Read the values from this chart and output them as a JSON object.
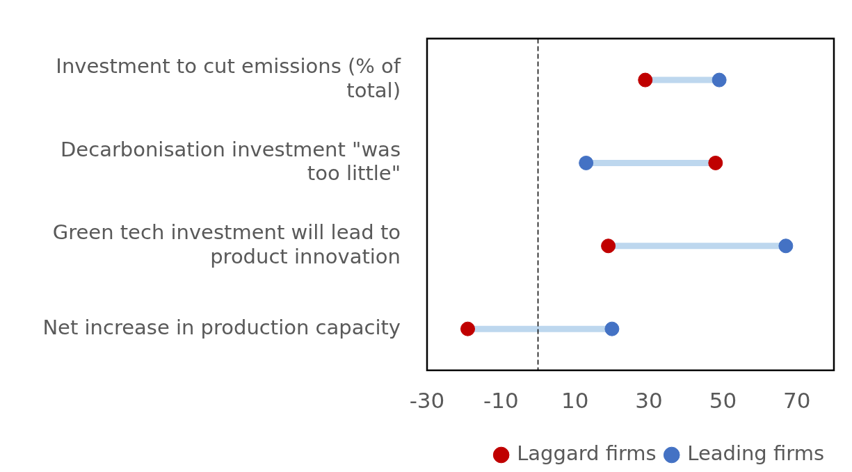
{
  "chart_data": {
    "type": "scatter",
    "orientation": "horizontal",
    "categories": [
      "Investment to cut emissions (% of total)",
      "Decarbonisation investment \"was too little\"",
      "Green tech investment will lead to product innovation",
      "Net increase in production capacity"
    ],
    "series": [
      {
        "name": "Laggard firms",
        "color": "#c00000",
        "values": [
          29,
          48,
          19,
          -19
        ]
      },
      {
        "name": "Leading firms",
        "color": "#4472c4",
        "values": [
          49,
          13,
          67,
          20
        ]
      }
    ],
    "xlim": [
      -30,
      80
    ],
    "xticks": [
      -30,
      -10,
      10,
      30,
      50,
      70
    ],
    "grid": false,
    "legend": "bottom",
    "marker": "circle",
    "ref_lines": [
      {
        "axis": "x",
        "value": 0,
        "color": "#000000",
        "line_style": "dashed"
      }
    ]
  }
}
